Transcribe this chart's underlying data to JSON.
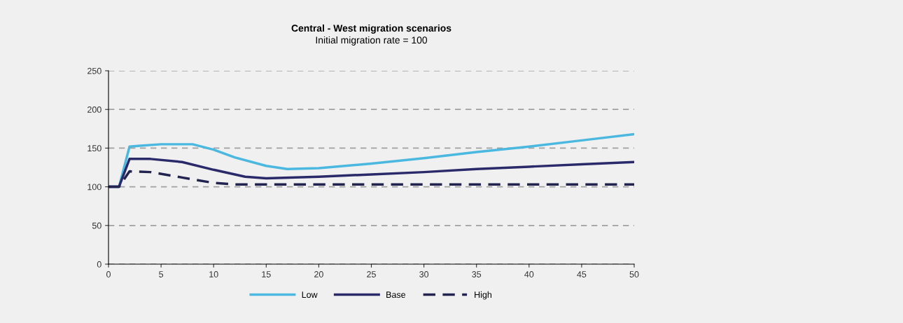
{
  "chart_data": {
    "type": "line",
    "title": "Central - West migration scenarios",
    "subtitle": "Initial migration rate = 100",
    "xlim": [
      0,
      50
    ],
    "xticks": [
      0,
      5,
      10,
      15,
      20,
      25,
      30,
      35,
      40,
      45,
      50
    ],
    "ylim": [
      0,
      250
    ],
    "yticks": [
      0,
      50,
      100,
      150,
      200,
      250
    ],
    "grid": "y",
    "legend": "bottom",
    "series": [
      {
        "name": "Low",
        "color": "#4bb8e0",
        "line_style": "solid",
        "x": [
          0,
          1,
          2,
          3,
          5,
          8,
          10,
          12,
          15,
          17,
          20,
          25,
          30,
          35,
          40,
          45,
          50
        ],
        "values": [
          100,
          100,
          152,
          153,
          155,
          155,
          148,
          138,
          127,
          123,
          124,
          130,
          137,
          145,
          152,
          160,
          168
        ]
      },
      {
        "name": "Base",
        "color": "#2a2a6a",
        "line_style": "solid",
        "x": [
          0,
          1,
          2,
          4,
          7,
          10,
          13,
          15,
          20,
          25,
          30,
          35,
          40,
          45,
          50
        ],
        "values": [
          100,
          100,
          136,
          136,
          132,
          122,
          113,
          111,
          113,
          116,
          119,
          123,
          126,
          129,
          132
        ]
      },
      {
        "name": "High",
        "color": "#23234f",
        "line_style": "dashed",
        "x": [
          0,
          1,
          2,
          4,
          7,
          10,
          12,
          15,
          50
        ],
        "values": [
          100,
          100,
          120,
          119,
          112,
          105,
          103,
          103,
          103
        ]
      }
    ]
  }
}
